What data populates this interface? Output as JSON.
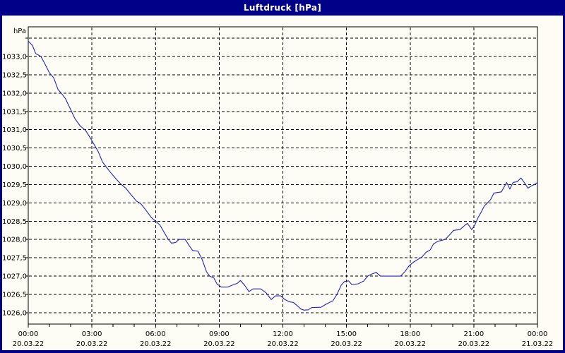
{
  "window": {
    "title": "Luftdruck [hPa]"
  },
  "colors": {
    "frame": "#000089",
    "title_text": "#ffffff",
    "panel_bg": "#fdfdf6",
    "line": "#2222c8",
    "grid": "#000000",
    "text": "#000000"
  },
  "chart_data": {
    "type": "line",
    "title": "Luftdruck [hPa]",
    "y_unit": "hPa",
    "ylim": [
      1025.69,
      1033.81
    ],
    "xlim_hours": [
      0,
      24
    ],
    "grid": "dashed",
    "legend": "none",
    "y_gridlines": [
      1033.5,
      1033.0,
      1032.5,
      1032.0,
      1031.5,
      1031.0,
      1030.5,
      1030.0,
      1029.5,
      1029.0,
      1028.5,
      1028.0,
      1027.5,
      1027.0,
      1026.5,
      1026.0
    ],
    "y_tick_labels": [
      {
        "value": 1033.0,
        "label": "1033,0"
      },
      {
        "value": 1032.5,
        "label": "1032,5"
      },
      {
        "value": 1032.0,
        "label": "1032,0"
      },
      {
        "value": 1031.5,
        "label": "1031,5"
      },
      {
        "value": 1031.0,
        "label": "1031,0"
      },
      {
        "value": 1030.5,
        "label": "1030,5"
      },
      {
        "value": 1030.0,
        "label": "1030,0"
      },
      {
        "value": 1029.5,
        "label": "1029,5"
      },
      {
        "value": 1029.0,
        "label": "1029,0"
      },
      {
        "value": 1028.5,
        "label": "1028,5"
      },
      {
        "value": 1028.0,
        "label": "1028,0"
      },
      {
        "value": 1027.5,
        "label": "1027,5"
      },
      {
        "value": 1027.0,
        "label": "1027,0"
      },
      {
        "value": 1026.5,
        "label": "1026,5"
      },
      {
        "value": 1026.0,
        "label": "1026,0"
      }
    ],
    "x_gridline_hours": [
      3,
      6,
      9,
      12,
      15,
      18,
      21
    ],
    "x_minor_tick_step_hours": 1,
    "x_major_ticks": [
      {
        "hour": 0,
        "time": "00:00",
        "date": "20.03.22"
      },
      {
        "hour": 3,
        "time": "03:00",
        "date": "20.03.22"
      },
      {
        "hour": 6,
        "time": "06:00",
        "date": "20.03.22"
      },
      {
        "hour": 9,
        "time": "09:00",
        "date": "20.03.22"
      },
      {
        "hour": 12,
        "time": "12:00",
        "date": "20.03.22"
      },
      {
        "hour": 15,
        "time": "15:00",
        "date": "20.03.22"
      },
      {
        "hour": 18,
        "time": "18:00",
        "date": "20.03.22"
      },
      {
        "hour": 21,
        "time": "21:00",
        "date": "20.03.22"
      },
      {
        "hour": 24,
        "time": "00:00",
        "date": "21.03.22"
      }
    ],
    "series": [
      {
        "name": "Luftdruck",
        "points": [
          [
            0.0,
            1033.42
          ],
          [
            0.2,
            1033.3
          ],
          [
            0.35,
            1033.08
          ],
          [
            0.6,
            1033.0
          ],
          [
            0.8,
            1032.78
          ],
          [
            1.0,
            1032.55
          ],
          [
            1.2,
            1032.42
          ],
          [
            1.4,
            1032.1
          ],
          [
            1.55,
            1032.0
          ],
          [
            1.75,
            1031.85
          ],
          [
            2.0,
            1031.55
          ],
          [
            2.2,
            1031.3
          ],
          [
            2.45,
            1031.1
          ],
          [
            2.7,
            1030.98
          ],
          [
            2.9,
            1030.8
          ],
          [
            3.1,
            1030.6
          ],
          [
            3.3,
            1030.4
          ],
          [
            3.5,
            1030.12
          ],
          [
            3.65,
            1030.0
          ],
          [
            3.85,
            1029.85
          ],
          [
            4.1,
            1029.68
          ],
          [
            4.35,
            1029.52
          ],
          [
            4.6,
            1029.4
          ],
          [
            4.85,
            1029.22
          ],
          [
            5.1,
            1029.05
          ],
          [
            5.3,
            1028.98
          ],
          [
            5.55,
            1028.8
          ],
          [
            5.8,
            1028.6
          ],
          [
            6.0,
            1028.5
          ],
          [
            6.2,
            1028.4
          ],
          [
            6.45,
            1028.15
          ],
          [
            6.6,
            1028.0
          ],
          [
            6.75,
            1027.9
          ],
          [
            6.95,
            1027.92
          ],
          [
            7.1,
            1028.0
          ],
          [
            7.4,
            1028.0
          ],
          [
            7.6,
            1027.82
          ],
          [
            7.75,
            1027.7
          ],
          [
            8.0,
            1027.68
          ],
          [
            8.2,
            1027.45
          ],
          [
            8.4,
            1027.12
          ],
          [
            8.55,
            1027.0
          ],
          [
            8.75,
            1026.95
          ],
          [
            8.9,
            1026.78
          ],
          [
            9.1,
            1026.7
          ],
          [
            9.4,
            1026.7
          ],
          [
            9.65,
            1026.76
          ],
          [
            9.85,
            1026.8
          ],
          [
            10.0,
            1026.88
          ],
          [
            10.2,
            1026.75
          ],
          [
            10.4,
            1026.58
          ],
          [
            10.6,
            1026.65
          ],
          [
            10.95,
            1026.65
          ],
          [
            11.2,
            1026.55
          ],
          [
            11.45,
            1026.36
          ],
          [
            11.65,
            1026.46
          ],
          [
            11.9,
            1026.46
          ],
          [
            12.1,
            1026.36
          ],
          [
            12.3,
            1026.3
          ],
          [
            12.5,
            1026.28
          ],
          [
            12.7,
            1026.18
          ],
          [
            12.85,
            1026.1
          ],
          [
            13.0,
            1026.07
          ],
          [
            13.2,
            1026.08
          ],
          [
            13.35,
            1026.14
          ],
          [
            13.8,
            1026.15
          ],
          [
            14.0,
            1026.22
          ],
          [
            14.2,
            1026.28
          ],
          [
            14.35,
            1026.32
          ],
          [
            14.55,
            1026.5
          ],
          [
            14.75,
            1026.75
          ],
          [
            14.9,
            1026.85
          ],
          [
            15.1,
            1026.87
          ],
          [
            15.25,
            1026.77
          ],
          [
            15.55,
            1026.79
          ],
          [
            15.8,
            1026.86
          ],
          [
            16.0,
            1027.0
          ],
          [
            16.2,
            1027.06
          ],
          [
            16.4,
            1027.1
          ],
          [
            16.6,
            1027.0
          ],
          [
            17.55,
            1027.0
          ],
          [
            17.75,
            1027.12
          ],
          [
            17.95,
            1027.28
          ],
          [
            18.15,
            1027.38
          ],
          [
            18.35,
            1027.45
          ],
          [
            18.55,
            1027.52
          ],
          [
            18.75,
            1027.65
          ],
          [
            18.95,
            1027.72
          ],
          [
            19.1,
            1027.88
          ],
          [
            19.3,
            1027.95
          ],
          [
            19.65,
            1028.0
          ],
          [
            19.85,
            1028.12
          ],
          [
            20.05,
            1028.25
          ],
          [
            20.35,
            1028.27
          ],
          [
            20.6,
            1028.4
          ],
          [
            20.7,
            1028.44
          ],
          [
            20.9,
            1028.27
          ],
          [
            21.05,
            1028.4
          ],
          [
            21.2,
            1028.6
          ],
          [
            21.35,
            1028.75
          ],
          [
            21.5,
            1028.92
          ],
          [
            21.65,
            1029.0
          ],
          [
            21.8,
            1029.1
          ],
          [
            21.95,
            1029.27
          ],
          [
            22.3,
            1029.3
          ],
          [
            22.55,
            1029.56
          ],
          [
            22.7,
            1029.38
          ],
          [
            22.85,
            1029.56
          ],
          [
            23.05,
            1029.58
          ],
          [
            23.22,
            1029.68
          ],
          [
            23.4,
            1029.54
          ],
          [
            23.55,
            1029.4
          ],
          [
            23.7,
            1029.46
          ],
          [
            23.85,
            1029.5
          ],
          [
            24.0,
            1029.56
          ]
        ]
      }
    ]
  }
}
